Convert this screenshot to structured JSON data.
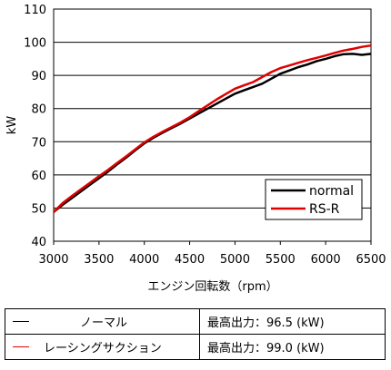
{
  "chart_data": {
    "type": "line",
    "xlabel": "エンジン回転数（rpm）",
    "ylabel": "kW",
    "xlim": [
      3000,
      6500
    ],
    "ylim": [
      40,
      110
    ],
    "xticks": [
      "3000",
      "3500",
      "4000",
      "4500",
      "5000",
      "5500",
      "6000",
      "6500"
    ],
    "yticks": [
      "40",
      "50",
      "60",
      "70",
      "80",
      "90",
      "100",
      "110"
    ],
    "grid": "horizontal",
    "legend_position": "bottom-right",
    "series": [
      {
        "name": "normal",
        "color": "#000000",
        "x": [
          3000,
          3100,
          3200,
          3300,
          3400,
          3500,
          3600,
          3700,
          3800,
          3900,
          4000,
          4100,
          4200,
          4300,
          4400,
          4500,
          4600,
          4700,
          4800,
          4900,
          5000,
          5100,
          5200,
          5300,
          5400,
          5500,
          5600,
          5700,
          5800,
          5900,
          6000,
          6100,
          6200,
          6300,
          6400,
          6500
        ],
        "y": [
          48.8,
          51.0,
          53.0,
          55.0,
          57.0,
          59.0,
          61.0,
          63.2,
          65.2,
          67.4,
          69.5,
          71.2,
          72.7,
          74.1,
          75.5,
          77.0,
          78.5,
          80.0,
          81.5,
          83.0,
          84.5,
          85.5,
          86.5,
          87.5,
          89.0,
          90.5,
          91.5,
          92.5,
          93.3,
          94.3,
          95.0,
          95.8,
          96.4,
          96.5,
          96.2,
          96.5
        ]
      },
      {
        "name": "RS-R",
        "color": "#e00000",
        "x": [
          3000,
          3100,
          3200,
          3300,
          3400,
          3500,
          3600,
          3700,
          3800,
          3900,
          4000,
          4100,
          4200,
          4300,
          4400,
          4500,
          4600,
          4700,
          4800,
          4900,
          5000,
          5100,
          5200,
          5300,
          5400,
          5500,
          5600,
          5700,
          5800,
          5900,
          6000,
          6100,
          6200,
          6300,
          6400,
          6500
        ],
        "y": [
          48.8,
          51.5,
          53.6,
          55.6,
          57.6,
          59.6,
          61.5,
          63.6,
          65.6,
          67.7,
          69.8,
          71.5,
          73.0,
          74.4,
          75.8,
          77.4,
          79.2,
          81.0,
          82.8,
          84.4,
          86.0,
          87.0,
          88.0,
          89.5,
          91.0,
          92.2,
          93.0,
          93.8,
          94.6,
          95.3,
          96.0,
          96.8,
          97.5,
          98.0,
          98.6,
          99.0
        ]
      }
    ]
  },
  "table": {
    "rows": [
      {
        "name": "ノーマル",
        "value": "最高出力：96.5 (kW)",
        "color": "#000000"
      },
      {
        "name": "レーシングサクション",
        "value": "最高出力：99.0 (kW)",
        "color": "#e00000"
      }
    ]
  }
}
